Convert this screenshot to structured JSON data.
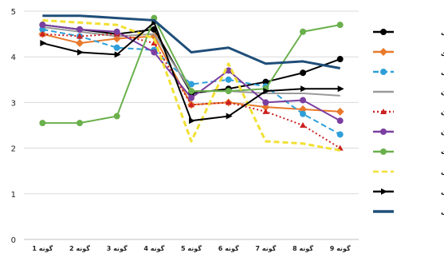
{
  "chart_data": {
    "type": "line",
    "categories": [
      "گونه 1",
      "گونه 2",
      "گونه 3",
      "گونه 4",
      "گونه 5",
      "گونه 6",
      "گونه 7",
      "گونه 8",
      "گونه 9"
    ],
    "ylim": [
      0,
      5
    ],
    "yticks": [
      0,
      1,
      2,
      3,
      4,
      5
    ],
    "grid": true,
    "legend_position": "right",
    "series": [
      {
        "name": "زیبایی",
        "color": "#000000",
        "style": "solid",
        "marker": "circle",
        "values": [
          4.7,
          4.6,
          4.5,
          4.6,
          3.2,
          3.3,
          3.45,
          3.65,
          3.95
        ]
      },
      {
        "name": "حس تعلق",
        "color": "#e8792b",
        "style": "solid",
        "marker": "diamond",
        "values": [
          4.5,
          4.3,
          4.4,
          4.45,
          2.95,
          3.0,
          2.9,
          2.85,
          2.8
        ]
      },
      {
        "name": "حریم خصوصی",
        "color": "#2e9fd8",
        "style": "dashed",
        "marker": "circle",
        "values": [
          4.6,
          4.45,
          4.2,
          4.15,
          3.4,
          3.5,
          3.35,
          2.75,
          2.3
        ]
      },
      {
        "name": "دلبستگی به مکان",
        "color": "#9a9a9a",
        "style": "solid",
        "marker": "none",
        "values": [
          4.65,
          4.55,
          4.45,
          4.5,
          3.25,
          3.25,
          3.2,
          3.2,
          3.15
        ]
      },
      {
        "name": "هویت مکان",
        "color": "#cc2020",
        "style": "dotted",
        "marker": "triangle",
        "values": [
          4.5,
          4.45,
          4.5,
          4.3,
          2.95,
          3.0,
          2.8,
          2.5,
          2.0
        ]
      },
      {
        "name": "وابستگی مکان",
        "color": "#7b3fa0",
        "style": "solid",
        "marker": "circle",
        "values": [
          4.7,
          4.6,
          4.55,
          4.1,
          3.1,
          3.7,
          3.0,
          3.05,
          2.6
        ]
      },
      {
        "name": "پیوند با طبیعت",
        "color": "#6ab04c",
        "style": "solid",
        "marker": "circle",
        "values": [
          2.55,
          2.55,
          2.7,
          4.85,
          3.25,
          3.25,
          3.3,
          4.55,
          4.7
        ]
      },
      {
        "name": "پیوند اجتماعی",
        "color": "#f2e033",
        "style": "dashed",
        "marker": "none",
        "values": [
          4.8,
          4.75,
          4.7,
          4.4,
          2.15,
          3.85,
          2.15,
          2.1,
          1.95
        ]
      },
      {
        "name": "صمیمیت و راحتی",
        "color": "#000000",
        "style": "solid",
        "marker": "arrow",
        "values": [
          4.3,
          4.1,
          4.05,
          4.75,
          2.6,
          2.7,
          3.25,
          3.3,
          3.3
        ]
      },
      {
        "name": "تعامل اجتماعی",
        "color": "#1f4e79",
        "style": "solid",
        "marker": "none",
        "values": [
          4.9,
          4.9,
          4.85,
          4.8,
          4.1,
          4.2,
          3.85,
          3.9,
          3.75
        ]
      }
    ]
  }
}
